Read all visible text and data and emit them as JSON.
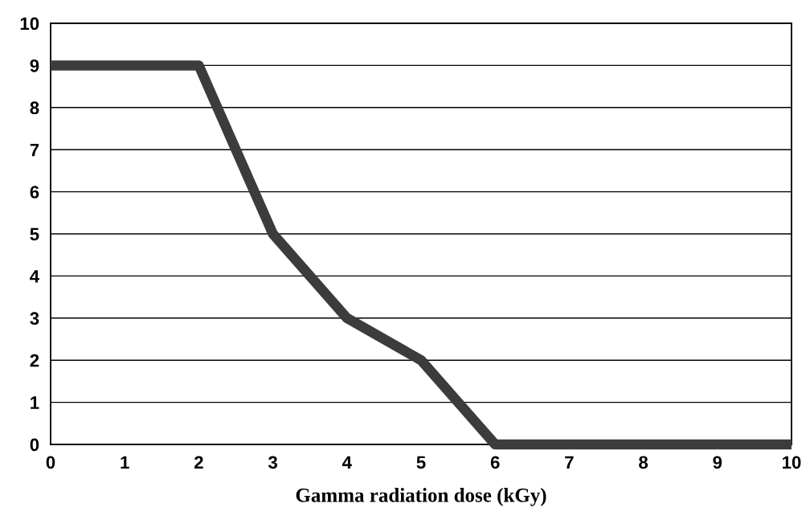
{
  "chart_data": {
    "type": "line",
    "xlabel": "Gamma radiation dose (kGy)",
    "x": [
      0,
      2,
      3,
      4,
      5,
      6,
      10
    ],
    "series": [
      {
        "color": "#3c3c3c",
        "values": [
          9,
          9,
          5,
          3,
          2,
          0,
          0
        ]
      }
    ],
    "xlim": [
      0,
      10
    ],
    "xticks": [
      0,
      1,
      2,
      3,
      4,
      5,
      6,
      7,
      8,
      9,
      10
    ],
    "ylim": [
      0,
      10
    ],
    "yticks": [
      0,
      1,
      2,
      3,
      4,
      5,
      6,
      7,
      8,
      9,
      10
    ],
    "grid": "y",
    "line_style": "solid",
    "marker": "none"
  }
}
